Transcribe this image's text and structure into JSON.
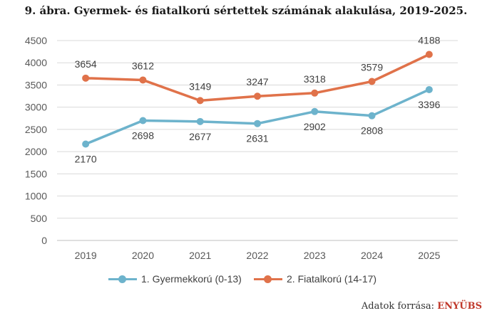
{
  "title": "9. ábra. Gyermek- és fiatalkorú sértettek számának alakulása, 2019-2025.",
  "source": {
    "label": "Adatok forrása:",
    "brand": "ENYÜBS"
  },
  "chart_data": {
    "type": "line",
    "x": [
      "2019",
      "2020",
      "2021",
      "2022",
      "2023",
      "2024",
      "2025"
    ],
    "ylim": [
      0,
      4500
    ],
    "yticks": [
      0,
      500,
      1000,
      1500,
      2000,
      2500,
      3000,
      3500,
      4000,
      4500
    ],
    "grid": true,
    "legend": "bottom",
    "series": [
      {
        "name": "1. Gyermekkorú (0-13)",
        "color": "#6db3cc",
        "values": [
          2170,
          2698,
          2677,
          2631,
          2902,
          2808,
          3396
        ],
        "label_position": "below"
      },
      {
        "name": "2. Fiatalkorú (14-17)",
        "color": "#e0724a",
        "values": [
          3654,
          3612,
          3149,
          3247,
          3318,
          3579,
          4188
        ],
        "label_position": "above"
      }
    ]
  }
}
